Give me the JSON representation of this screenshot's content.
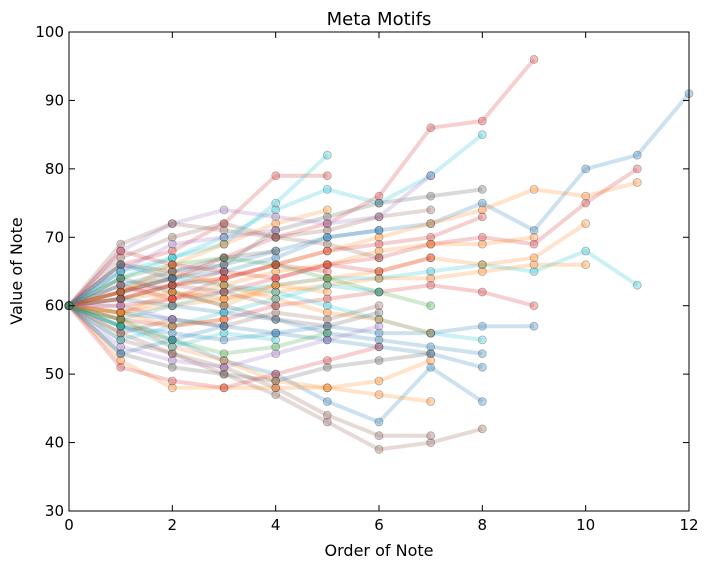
{
  "chart_data": {
    "type": "line",
    "title": "Meta Motifs",
    "xlabel": "Order of Note",
    "ylabel": "Value of Note",
    "xlim": [
      0,
      12
    ],
    "ylim": [
      30,
      100
    ],
    "xticks": [
      "0",
      "2",
      "4",
      "6",
      "8",
      "10",
      "12"
    ],
    "yticks": [
      "30",
      "40",
      "50",
      "60",
      "70",
      "80",
      "90",
      "100"
    ],
    "grid": false,
    "legend": "none",
    "colors": [
      "#1f77b4",
      "#d62728",
      "#ff7f0e",
      "#17becf",
      "#9467bd",
      "#8c564b",
      "#2ca02c",
      "#555555"
    ],
    "series": [
      {
        "x": [
          0,
          1,
          2,
          3,
          4,
          5,
          6,
          7,
          8,
          9,
          10,
          11,
          12
        ],
        "y": [
          60,
          63,
          65,
          66,
          68,
          70,
          71,
          72,
          75,
          71,
          80,
          82,
          91
        ],
        "color_index": 0
      },
      {
        "x": [
          0,
          1,
          2,
          3,
          4,
          5,
          6,
          7,
          8,
          9
        ],
        "y": [
          60,
          62,
          64,
          67,
          70,
          72,
          76,
          86,
          87,
          96
        ],
        "color_index": 1
      },
      {
        "x": [
          0,
          1,
          2,
          3,
          4,
          5,
          6,
          7,
          8,
          9,
          10,
          11
        ],
        "y": [
          60,
          61,
          63,
          64,
          66,
          68,
          70,
          72,
          74,
          77,
          76,
          78
        ],
        "color_index": 2
      },
      {
        "x": [
          0,
          1,
          2,
          3,
          4,
          5,
          6,
          7,
          8,
          9,
          10,
          11
        ],
        "y": [
          60,
          62,
          63,
          65,
          64,
          66,
          67,
          69,
          70,
          69,
          75,
          80
        ],
        "color_index": 1
      },
      {
        "x": [
          0,
          1,
          2,
          3,
          4,
          5,
          6,
          7,
          8,
          9,
          10,
          11
        ],
        "y": [
          60,
          58,
          60,
          62,
          63,
          64,
          64,
          65,
          66,
          65,
          68,
          63
        ],
        "color_index": 3
      },
      {
        "x": [
          0,
          1,
          2,
          3,
          4,
          5,
          6,
          7,
          8,
          9,
          10
        ],
        "y": [
          60,
          61,
          62,
          60,
          63,
          64,
          65,
          67,
          66,
          67,
          72
        ],
        "color_index": 2
      },
      {
        "x": [
          0,
          1,
          2,
          3,
          4,
          5,
          6,
          7,
          8,
          9,
          10
        ],
        "y": [
          60,
          59,
          60,
          61,
          62,
          63,
          64,
          64,
          65,
          66,
          66
        ],
        "color_index": 2
      },
      {
        "x": [
          0,
          1,
          2,
          3,
          4,
          5,
          6,
          7,
          8
        ],
        "y": [
          60,
          64,
          67,
          70,
          74,
          77,
          75,
          79,
          85
        ],
        "color_index": 3
      },
      {
        "x": [
          0,
          1,
          2,
          3,
          4,
          5,
          6,
          7,
          8
        ],
        "y": [
          60,
          57,
          55,
          52,
          50,
          46,
          43,
          51,
          46
        ],
        "color_index": 0
      },
      {
        "x": [
          0,
          1,
          2,
          3,
          4,
          5,
          6,
          7,
          8
        ],
        "y": [
          60,
          55,
          53,
          50,
          47,
          43,
          39,
          40,
          42
        ],
        "color_index": 5
      },
      {
        "x": [
          0,
          1,
          2,
          3,
          4,
          5,
          6,
          7
        ],
        "y": [
          60,
          56,
          53,
          51,
          48,
          44,
          41,
          41
        ],
        "color_index": 5
      },
      {
        "x": [
          0,
          1,
          2,
          3,
          4,
          5,
          6,
          7
        ],
        "y": [
          60,
          58,
          54,
          52,
          49,
          48,
          47,
          46
        ],
        "color_index": 2
      },
      {
        "x": [
          0,
          1,
          2,
          3,
          4,
          5
        ],
        "y": [
          60,
          66,
          68,
          72,
          79,
          79
        ],
        "color_index": 1
      },
      {
        "x": [
          0,
          1,
          2,
          3,
          4,
          5
        ],
        "y": [
          60,
          65,
          67,
          69,
          75,
          82
        ],
        "color_index": 3
      },
      {
        "x": [
          0,
          1,
          2,
          3,
          4,
          5,
          6,
          7,
          8
        ],
        "y": [
          60,
          62,
          64,
          66,
          71,
          73,
          75,
          76,
          77
        ],
        "color_index": 7
      },
      {
        "x": [
          0,
          1,
          2,
          3,
          4,
          5,
          6,
          7,
          8
        ],
        "y": [
          60,
          61,
          63,
          64,
          66,
          68,
          69,
          70,
          73
        ],
        "color_index": 1
      },
      {
        "x": [
          0,
          1,
          2,
          3,
          4,
          5,
          6,
          7,
          8,
          9
        ],
        "y": [
          60,
          59,
          61,
          63,
          65,
          66,
          68,
          69,
          69,
          70
        ],
        "color_index": 2
      },
      {
        "x": [
          0,
          1,
          2,
          3,
          4,
          5,
          6,
          7,
          8,
          9
        ],
        "y": [
          60,
          58,
          57,
          58,
          60,
          61,
          62,
          63,
          62,
          60
        ],
        "color_index": 1
      },
      {
        "x": [
          0,
          1,
          2,
          3,
          4,
          5,
          6,
          7,
          8,
          9
        ],
        "y": [
          60,
          57,
          56,
          55,
          56,
          57,
          56,
          56,
          57,
          57
        ],
        "color_index": 0
      },
      {
        "x": [
          0,
          1,
          2,
          3,
          4,
          5,
          6,
          7,
          8
        ],
        "y": [
          60,
          59,
          58,
          57,
          56,
          55,
          54,
          53,
          51
        ],
        "color_index": 0
      },
      {
        "x": [
          0,
          1,
          2,
          3,
          4,
          5,
          6,
          7,
          8
        ],
        "y": [
          60,
          61,
          60,
          59,
          58,
          56,
          55,
          54,
          53
        ],
        "color_index": 0
      },
      {
        "x": [
          0,
          1,
          2,
          3,
          4,
          5,
          6,
          7,
          8
        ],
        "y": [
          60,
          63,
          64,
          63,
          62,
          60,
          58,
          56,
          55
        ],
        "color_index": 3
      },
      {
        "x": [
          0,
          1,
          2,
          3,
          4,
          5,
          6,
          7
        ],
        "y": [
          60,
          68,
          72,
          74,
          73,
          72,
          73,
          79
        ],
        "color_index": 4
      },
      {
        "x": [
          0,
          1,
          2,
          3,
          4,
          5,
          6,
          7
        ],
        "y": [
          60,
          67,
          70,
          72,
          70,
          71,
          73,
          74
        ],
        "color_index": 5
      },
      {
        "x": [
          0,
          1,
          2,
          3,
          4,
          5,
          6,
          7
        ],
        "y": [
          60,
          64,
          66,
          67,
          66,
          64,
          62,
          60
        ],
        "color_index": 6
      },
      {
        "x": [
          0,
          1,
          2,
          3,
          4,
          5,
          6,
          7
        ],
        "y": [
          60,
          53,
          51,
          50,
          49,
          51,
          52,
          53
        ],
        "color_index": 7
      },
      {
        "x": [
          0,
          1,
          2,
          3,
          4,
          5,
          6
        ],
        "y": [
          60,
          54,
          52,
          51,
          53,
          55,
          57
        ],
        "color_index": 4
      },
      {
        "x": [
          0,
          1,
          2,
          3,
          4,
          5,
          6,
          7
        ],
        "y": [
          60,
          52,
          48,
          48,
          48,
          48,
          49,
          52
        ],
        "color_index": 2
      },
      {
        "x": [
          0,
          1,
          2,
          3,
          4,
          5,
          6
        ],
        "y": [
          60,
          51,
          49,
          48,
          50,
          52,
          54
        ],
        "color_index": 1
      },
      {
        "x": [
          0,
          1,
          2,
          3,
          4,
          5,
          6,
          7
        ],
        "y": [
          60,
          62,
          65,
          63,
          61,
          59,
          58,
          56
        ],
        "color_index": 2
      },
      {
        "x": [
          0,
          1,
          2,
          3,
          4,
          5,
          6,
          7
        ],
        "y": [
          60,
          60,
          61,
          62,
          64,
          66,
          65,
          67
        ],
        "color_index": 1
      },
      {
        "x": [
          0,
          1,
          2,
          3,
          4,
          5,
          6
        ],
        "y": [
          60,
          69,
          72,
          71,
          70,
          69,
          67
        ],
        "color_index": 5
      },
      {
        "x": [
          0,
          1,
          2,
          3,
          4,
          5,
          6
        ],
        "y": [
          60,
          66,
          64,
          65,
          67,
          70,
          71
        ],
        "color_index": 0
      },
      {
        "x": [
          0,
          1,
          2,
          3,
          4,
          5,
          6
        ],
        "y": [
          60,
          55,
          57,
          59,
          61,
          63,
          62
        ],
        "color_index": 3
      },
      {
        "x": [
          0,
          1,
          2,
          3,
          4,
          5,
          6
        ],
        "y": [
          60,
          56,
          58,
          57,
          59,
          58,
          60
        ],
        "color_index": 5
      },
      {
        "x": [
          0,
          1,
          2,
          3,
          4,
          5,
          6
        ],
        "y": [
          60,
          64,
          62,
          60,
          58,
          57,
          59
        ],
        "color_index": 7
      },
      {
        "x": [
          0,
          1,
          2,
          3,
          4,
          5
        ],
        "y": [
          60,
          62,
          66,
          69,
          72,
          74
        ],
        "color_index": 2
      },
      {
        "x": [
          0,
          1,
          2,
          3,
          4,
          5
        ],
        "y": [
          60,
          58,
          55,
          53,
          54,
          56
        ],
        "color_index": 6
      },
      {
        "x": [
          0,
          1,
          2,
          3,
          4,
          5
        ],
        "y": [
          60,
          63,
          61,
          64,
          66,
          65
        ],
        "color_index": 1
      },
      {
        "x": [
          0,
          1,
          2,
          3,
          4,
          5
        ],
        "y": [
          60,
          59,
          62,
          61,
          63,
          62
        ],
        "color_index": 2
      },
      {
        "x": [
          0,
          1,
          2,
          3,
          4
        ],
        "y": [
          60,
          65,
          69,
          70,
          71
        ],
        "color_index": 4
      },
      {
        "x": [
          0,
          1,
          2,
          3,
          4
        ],
        "y": [
          60,
          57,
          54,
          56,
          55
        ],
        "color_index": 3
      },
      {
        "x": [
          0,
          1,
          2,
          3,
          4
        ],
        "y": [
          60,
          61,
          63,
          62,
          60
        ],
        "color_index": 5
      },
      {
        "x": [
          0,
          1,
          2,
          3,
          4
        ],
        "y": [
          60,
          66,
          65,
          67,
          68
        ],
        "color_index": 7
      },
      {
        "x": [
          0,
          1,
          2,
          3
        ],
        "y": [
          60,
          68,
          66,
          65
        ],
        "color_index": 1
      },
      {
        "x": [
          0,
          1,
          2,
          3
        ],
        "y": [
          60,
          53,
          55,
          57
        ],
        "color_index": 0
      },
      {
        "x": [
          0,
          1,
          2,
          3
        ],
        "y": [
          60,
          59,
          57,
          58
        ],
        "color_index": 2
      },
      {
        "x": [
          0,
          1,
          2
        ],
        "y": [
          60,
          62,
          64
        ],
        "color_index": 5
      },
      {
        "x": [
          0,
          1,
          2
        ],
        "y": [
          60,
          60,
          58
        ],
        "color_index": 4
      },
      {
        "x": [
          0,
          1
        ],
        "y": [
          60,
          65
        ],
        "color_index": 3
      },
      {
        "x": [
          0,
          1
        ],
        "y": [
          60,
          57
        ],
        "color_index": 6
      }
    ]
  }
}
